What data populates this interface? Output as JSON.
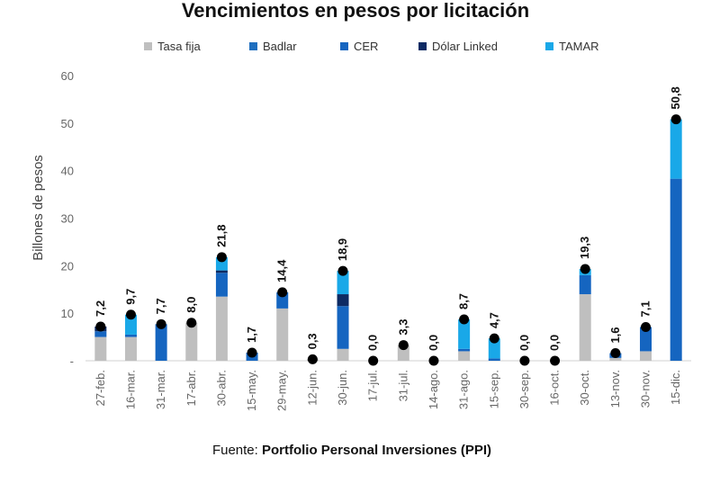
{
  "chart_data": {
    "type": "bar",
    "stacked": true,
    "title": "Vencimientos en pesos por licitación",
    "ylabel": "Billones de pesos",
    "ylim": [
      0,
      60
    ],
    "yticks": [
      "-",
      "10",
      "20",
      "30",
      "40",
      "50",
      "60"
    ],
    "legend_position": "top",
    "grid": false,
    "categories": [
      "27-feb.",
      "16-mar.",
      "31-mar.",
      "17-abr.",
      "30-abr.",
      "15-may.",
      "29-may.",
      "12-jun.",
      "30-jun.",
      "17-jul.",
      "31-jul.",
      "14-ago.",
      "31-ago.",
      "15-sep.",
      "30-sep.",
      "16-oct.",
      "30-oct.",
      "13-nov.",
      "30-nov.",
      "15-dic."
    ],
    "series": [
      {
        "name": "Tasa fija",
        "color": "#bfbfbf",
        "values": [
          5.0,
          5.0,
          0,
          8.0,
          13.5,
          0,
          11.0,
          0.3,
          2.5,
          0,
          3.3,
          0,
          2.0,
          0,
          0,
          0,
          14.0,
          0.6,
          2.0,
          0
        ]
      },
      {
        "name": "Badlar",
        "color": "#1f6fbf",
        "values": [
          0,
          0,
          0,
          0,
          0,
          0,
          0,
          0,
          0,
          0,
          0,
          0,
          0,
          0,
          0,
          0,
          0,
          0,
          0,
          0
        ]
      },
      {
        "name": "CER",
        "color": "#1565c0",
        "values": [
          1.2,
          0.5,
          7.7,
          0,
          5.0,
          1.7,
          3.4,
          0,
          9.0,
          0,
          0,
          0,
          0.5,
          0.5,
          0,
          0,
          4.0,
          1.0,
          5.1,
          38.3
        ]
      },
      {
        "name": "Dólar Linked",
        "color": "#0d2a63",
        "values": [
          1.0,
          0,
          0,
          0,
          0.5,
          0,
          0,
          0,
          2.5,
          0,
          0,
          0,
          0,
          0,
          0,
          0,
          0,
          0,
          0,
          0
        ]
      },
      {
        "name": "TAMAR",
        "color": "#19a8e8",
        "values": [
          0,
          4.2,
          0,
          0,
          2.8,
          0,
          0,
          0,
          4.9,
          0,
          0,
          0,
          6.2,
          4.2,
          0,
          0,
          1.3,
          0,
          0,
          12.5
        ]
      }
    ],
    "totals": [
      7.2,
      9.7,
      7.7,
      8.0,
      21.8,
      1.7,
      14.4,
      0.3,
      18.9,
      0.0,
      3.3,
      0.0,
      8.7,
      4.7,
      0.0,
      0.0,
      19.3,
      1.6,
      7.1,
      50.8
    ],
    "total_labels": [
      "7,2",
      "9,7",
      "7,7",
      "8,0",
      "21,8",
      "1,7",
      "14,4",
      "0,3",
      "18,9",
      "0,0",
      "3,3",
      "0,0",
      "8,7",
      "4,7",
      "0,0",
      "0,0",
      "19,3",
      "1,6",
      "7,1",
      "50,8"
    ]
  },
  "source": {
    "prefix": "Fuente: ",
    "name": "Portfolio Personal Inversiones (PPI)"
  }
}
